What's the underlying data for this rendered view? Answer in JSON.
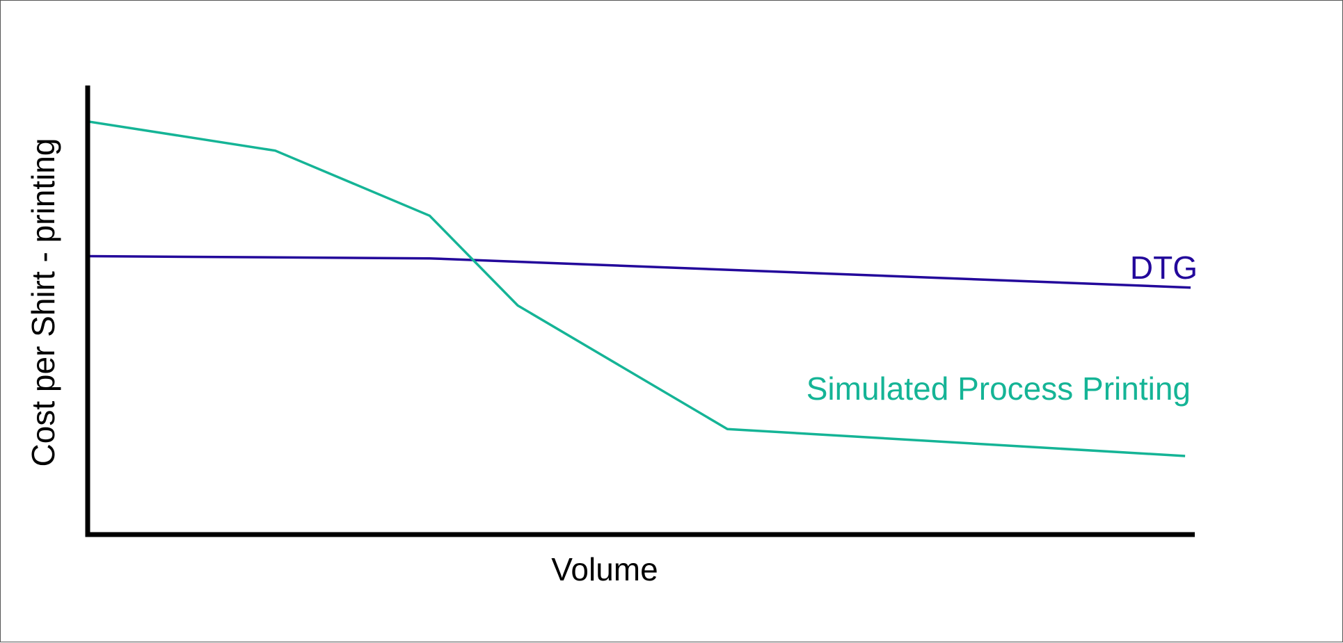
{
  "chart_data": {
    "type": "line",
    "title": "",
    "xlabel": "Volume",
    "ylabel": "Cost per Shirt - printing",
    "xlim": [
      0,
      100
    ],
    "ylim": [
      0,
      100
    ],
    "x_ticks_shown": false,
    "y_ticks_shown": false,
    "grid": false,
    "legend": "inline labels",
    "series": [
      {
        "name": "DTG",
        "color": "#23089b",
        "points": [
          {
            "x": 0,
            "y": 62
          },
          {
            "x": 31,
            "y": 61.5
          },
          {
            "x": 100,
            "y": 55
          }
        ]
      },
      {
        "name": "Simulated Process Printing",
        "color": "#15b496",
        "points": [
          {
            "x": 0,
            "y": 92
          },
          {
            "x": 17,
            "y": 85.5
          },
          {
            "x": 31,
            "y": 71
          },
          {
            "x": 39,
            "y": 51
          },
          {
            "x": 58,
            "y": 23.5
          },
          {
            "x": 99.5,
            "y": 17.5
          }
        ]
      }
    ]
  }
}
